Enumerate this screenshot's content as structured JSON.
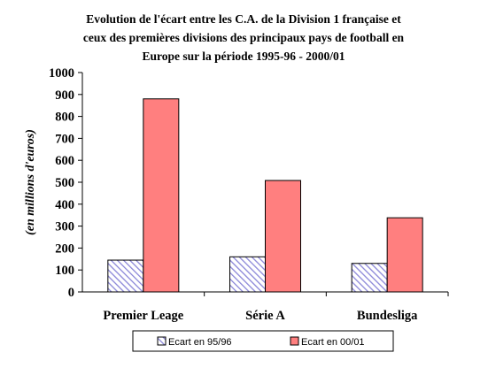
{
  "chart_data": {
    "type": "bar",
    "title_lines": [
      "Evolution de l'écart entre les C.A. de la Division 1 française et",
      "ceux des premières divisions des principaux pays de football en",
      "Europe sur la période 1995-96 - 2000/01"
    ],
    "ylabel": "(en millions d'euros)",
    "xlabel": "",
    "categories": [
      "Premier Leage",
      "Série A",
      "Bundesliga"
    ],
    "series": [
      {
        "name": "Ecart en 95/96",
        "values": [
          145,
          160,
          130
        ],
        "color": "#8a86d8",
        "pattern": "diagonal-hatch"
      },
      {
        "name": "Ecart en 00/01",
        "values": [
          880,
          508,
          338
        ],
        "color": "#ff7f7f",
        "pattern": "solid"
      }
    ],
    "ylim": [
      0,
      1000
    ],
    "yticks": [
      "0",
      "100",
      "200",
      "300",
      "400",
      "500",
      "600",
      "700",
      "800",
      "900",
      "1000"
    ],
    "grid": false,
    "legend_position": "bottom"
  }
}
